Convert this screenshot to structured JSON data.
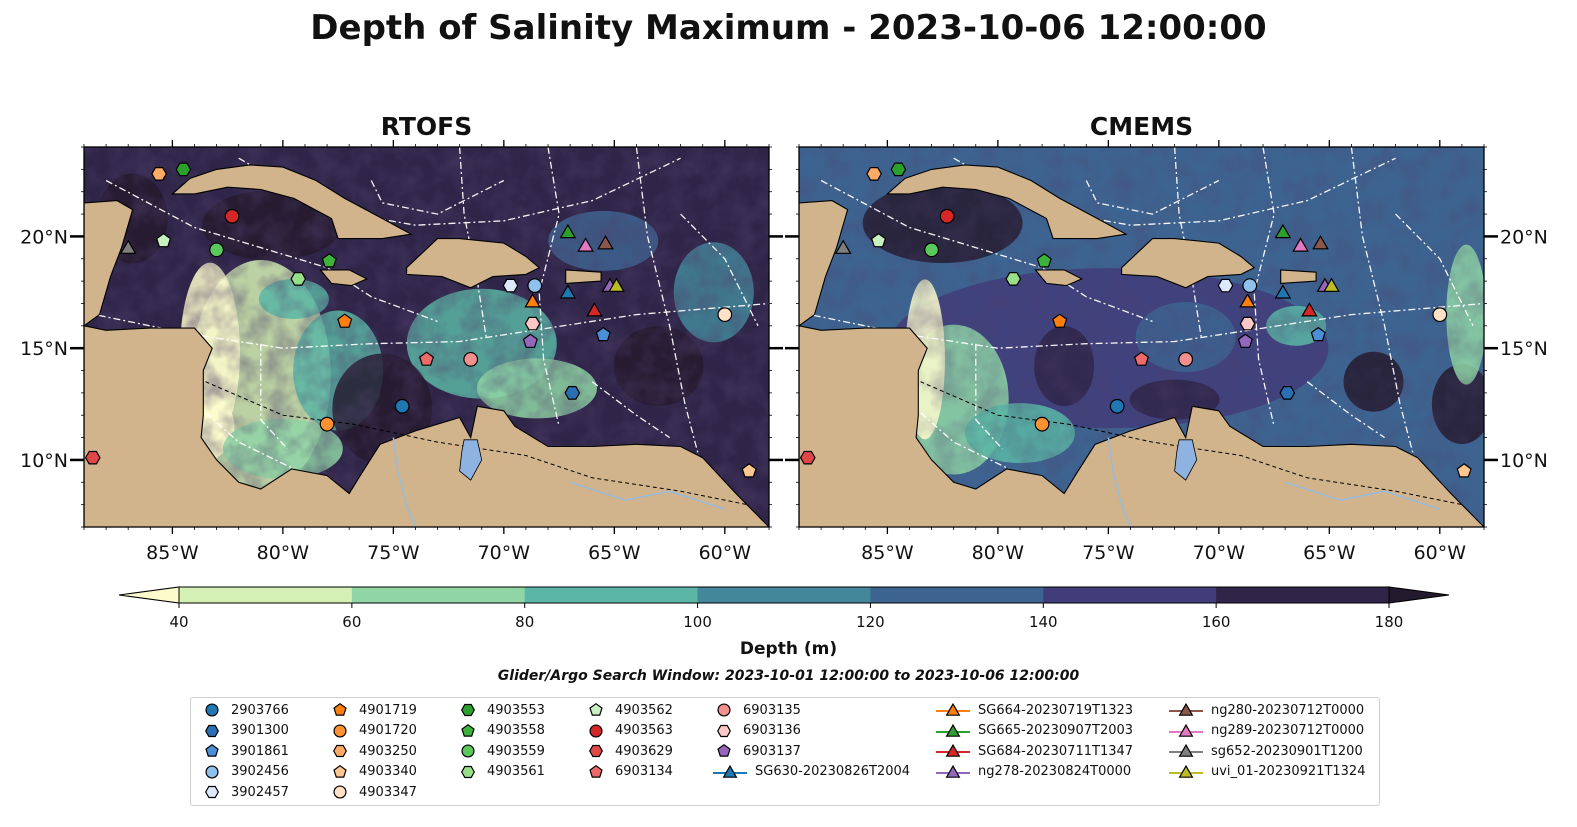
{
  "title": "Depth of Salinity Maximum - 2023-10-06 12:00:00",
  "panels": [
    {
      "title": "RTOFS",
      "tone": "rtofs"
    },
    {
      "title": "CMEMS",
      "tone": "cmems"
    }
  ],
  "axes": {
    "x_ticks": [
      "85°W",
      "80°W",
      "75°W",
      "70°W",
      "65°W",
      "60°W"
    ],
    "x_values": [
      -85,
      -80,
      -75,
      -70,
      -65,
      -60
    ],
    "y_ticks": [
      "20°N",
      "15°N",
      "10°N"
    ],
    "y_values": [
      20,
      15,
      10
    ],
    "lon_range": [
      -89,
      -58
    ],
    "lat_range": [
      7,
      24
    ]
  },
  "colorbar": {
    "title": "Depth (m)",
    "ticks": [
      "40",
      "60",
      "80",
      "100",
      "120",
      "140",
      "160",
      "180"
    ],
    "levels": [
      40,
      60,
      80,
      100,
      120,
      140,
      160,
      180
    ],
    "colors": [
      "#d4f0b4",
      "#8fd5a6",
      "#5bb6a6",
      "#43879b",
      "#3d6491",
      "#413c7a",
      "#2f2548"
    ],
    "extend": "both",
    "under_color": "#fdfbcc",
    "over_color": "#241a2e"
  },
  "search_window": "Glider/Argo Search Window: 2023-10-01 12:00:00 to 2023-10-06 12:00:00",
  "colors": {
    "land": "#d2b48c",
    "lake": "#8fb3e0",
    "river": "#9bbbd8"
  },
  "legend": [
    {
      "label": "2903766",
      "marker": "circle",
      "color": "#1f77b4"
    },
    {
      "label": "3901300",
      "marker": "hexagon",
      "color": "#2b6fb3"
    },
    {
      "label": "3901861",
      "marker": "pentagon",
      "color": "#4a8fd6"
    },
    {
      "label": "3902456",
      "marker": "circle",
      "color": "#8ec2ec"
    },
    {
      "label": "3902457",
      "marker": "hexagon",
      "color": "#dbe9fb"
    },
    {
      "label": "4901719",
      "marker": "pentagon",
      "color": "#ff7f0e"
    },
    {
      "label": "4901720",
      "marker": "circle",
      "color": "#ff9133"
    },
    {
      "label": "4903250",
      "marker": "hexagon",
      "color": "#ffab66"
    },
    {
      "label": "4903340",
      "marker": "pentagon",
      "color": "#ffc690"
    },
    {
      "label": "4903347",
      "marker": "circle",
      "color": "#ffe2c6"
    },
    {
      "label": "4903553",
      "marker": "hexagon",
      "color": "#2ca02c"
    },
    {
      "label": "4903558",
      "marker": "pentagon",
      "color": "#3cb43c"
    },
    {
      "label": "4903559",
      "marker": "circle",
      "color": "#5ac85a"
    },
    {
      "label": "4903561",
      "marker": "hexagon",
      "color": "#98df8a"
    },
    {
      "label": "4903562",
      "marker": "pentagon",
      "color": "#c8f0c0"
    },
    {
      "label": "4903563",
      "marker": "circle",
      "color": "#d62728"
    },
    {
      "label": "4903629",
      "marker": "hexagon",
      "color": "#e04848"
    },
    {
      "label": "6903134",
      "marker": "pentagon",
      "color": "#ee6a6a"
    },
    {
      "label": "6903135",
      "marker": "circle",
      "color": "#f29090"
    },
    {
      "label": "6903136",
      "marker": "hexagon",
      "color": "#fbc8c8"
    },
    {
      "label": "6903137",
      "marker": "pentagon",
      "color": "#9467bd"
    },
    {
      "label": "SG630-20230826T2004",
      "marker": "triangle",
      "color": "#1f77b4"
    },
    {
      "label": "SG664-20230719T1323",
      "marker": "triangle",
      "color": "#ff7f0e"
    },
    {
      "label": "SG665-20230907T2003",
      "marker": "triangle",
      "color": "#2ca02c"
    },
    {
      "label": "SG684-20230711T1347",
      "marker": "triangle",
      "color": "#d62728"
    },
    {
      "label": "ng278-20230824T0000",
      "marker": "triangle",
      "color": "#9467bd"
    },
    {
      "label": "ng280-20230712T0000",
      "marker": "triangle",
      "color": "#8c564b"
    },
    {
      "label": "ng289-20230712T0000",
      "marker": "triangle",
      "color": "#e377c2"
    },
    {
      "label": "sg652-20230901T1200",
      "marker": "triangle",
      "color": "#7f7f7f"
    },
    {
      "label": "uvi_01-20230921T1324",
      "marker": "triangle",
      "color": "#bcbd22"
    }
  ],
  "floats": [
    {
      "id": "2903766",
      "lon": -74.6,
      "lat": 12.4
    },
    {
      "id": "3901300",
      "lon": -66.9,
      "lat": 13.0
    },
    {
      "id": "3901861",
      "lon": -65.5,
      "lat": 15.6
    },
    {
      "id": "3902456",
      "lon": -68.6,
      "lat": 17.8
    },
    {
      "id": "3902457",
      "lon": -69.7,
      "lat": 17.8
    },
    {
      "id": "4901719",
      "lon": -77.2,
      "lat": 16.2
    },
    {
      "id": "4901720",
      "lon": -78.0,
      "lat": 11.6
    },
    {
      "id": "4903250",
      "lon": -85.6,
      "lat": 22.8
    },
    {
      "id": "4903340",
      "lon": -58.9,
      "lat": 9.5
    },
    {
      "id": "4903347",
      "lon": -60.0,
      "lat": 16.5
    },
    {
      "id": "4903553",
      "lon": -84.5,
      "lat": 23.0
    },
    {
      "id": "4903558",
      "lon": -77.9,
      "lat": 18.9
    },
    {
      "id": "4903559",
      "lon": -83.0,
      "lat": 19.4
    },
    {
      "id": "4903561",
      "lon": -79.3,
      "lat": 18.1
    },
    {
      "id": "4903562",
      "lon": -85.4,
      "lat": 19.8
    },
    {
      "id": "4903563",
      "lon": -82.3,
      "lat": 20.9
    },
    {
      "id": "4903629",
      "lon": -88.6,
      "lat": 10.1
    },
    {
      "id": "6903134",
      "lon": -73.5,
      "lat": 14.5
    },
    {
      "id": "6903135",
      "lon": -71.5,
      "lat": 14.5
    },
    {
      "id": "6903136",
      "lon": -68.7,
      "lat": 16.1
    },
    {
      "id": "6903137",
      "lon": -68.8,
      "lat": 15.3
    },
    {
      "id": "SG630-20230826T2004",
      "lon": -67.1,
      "lat": 17.5
    },
    {
      "id": "SG664-20230719T1323",
      "lon": -68.7,
      "lat": 17.1
    },
    {
      "id": "SG665-20230907T2003",
      "lon": -67.1,
      "lat": 20.2
    },
    {
      "id": "SG684-20230711T1347",
      "lon": -65.9,
      "lat": 16.7
    },
    {
      "id": "ng278-20230824T0000",
      "lon": -65.2,
      "lat": 17.8
    },
    {
      "id": "ng280-20230712T0000",
      "lon": -65.4,
      "lat": 19.7
    },
    {
      "id": "ng289-20230712T0000",
      "lon": -66.3,
      "lat": 19.6
    },
    {
      "id": "sg652-20230901T1200",
      "lon": -87.0,
      "lat": 19.5
    },
    {
      "id": "uvi_01-20230921T1324",
      "lon": -64.9,
      "lat": 17.8
    }
  ]
}
